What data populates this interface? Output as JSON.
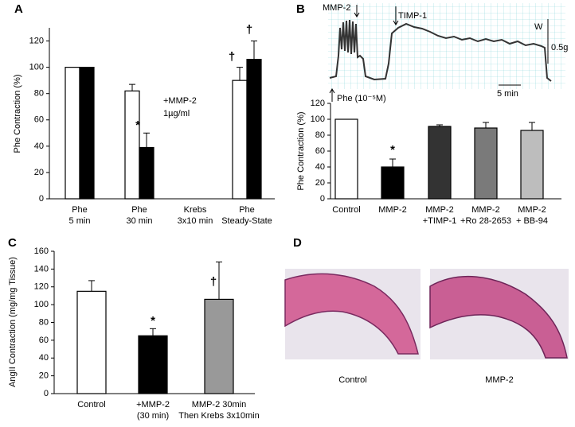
{
  "chart_data": [
    {
      "type": "bar",
      "panel": "A",
      "y_label": "Phe Contraction (%)",
      "categories": [
        [
          "Phe",
          "5 min"
        ],
        [
          "Phe",
          "30 min"
        ],
        [
          "Krebs",
          "3x10 min"
        ],
        [
          "Phe",
          "Steady-State"
        ]
      ],
      "series": [
        {
          "color": "#ffffff",
          "values": [
            100,
            82,
            null,
            90
          ],
          "errors": [
            null,
            5,
            null,
            10
          ]
        },
        {
          "color": "#000000",
          "values": [
            100,
            39,
            null,
            106
          ],
          "errors": [
            null,
            11,
            null,
            14
          ]
        }
      ],
      "ylim": [
        0,
        130
      ],
      "yticks": [
        0,
        20,
        40,
        60,
        80,
        100,
        120
      ],
      "annotations": [
        "+MMP-2",
        "1µg/ml",
        "*",
        "†",
        "†"
      ]
    },
    {
      "type": "bar",
      "panel": "B",
      "y_label": "Phe Contraction (%)",
      "categories": [
        [
          "Control"
        ],
        [
          "MMP-2"
        ],
        [
          "MMP-2",
          "+TIMP-1"
        ],
        [
          "MMP-2",
          "+Ro 28-2653"
        ],
        [
          "MMP-2",
          "+ BB-94"
        ]
      ],
      "series": [
        {
          "colors": [
            "#ffffff",
            "#000000",
            "#333333",
            "#7a7a7a",
            "#bdbdbd"
          ],
          "values": [
            100,
            40,
            91,
            89,
            86
          ],
          "errors": [
            null,
            10,
            2,
            7,
            10
          ]
        }
      ],
      "ylim": [
        0,
        120
      ],
      "yticks": [
        0,
        20,
        40,
        60,
        80,
        100,
        120
      ],
      "annotations": [
        "*"
      ],
      "trace_labels": [
        "MMP-2",
        "TIMP-1",
        "W",
        "0.5g",
        "5 min",
        "Phe (10⁻⁵M)"
      ]
    },
    {
      "type": "bar",
      "panel": "C",
      "y_label": "AngII Contraction (mg/mg Tissue)",
      "categories": [
        [
          "Control"
        ],
        [
          "+MMP-2",
          "(30 min)"
        ],
        [
          "MMP-2 30min",
          "Then Krebs 3x10min"
        ]
      ],
      "series": [
        {
          "colors": [
            "#ffffff",
            "#000000",
            "#999999"
          ],
          "values": [
            115,
            65,
            106
          ],
          "errors": [
            12,
            8,
            42
          ]
        }
      ],
      "ylim": [
        0,
        160
      ],
      "yticks": [
        0,
        20,
        40,
        60,
        80,
        100,
        120,
        140,
        160
      ],
      "annotations": [
        "*",
        "†"
      ]
    }
  ],
  "histology": {
    "panel": "D",
    "labels": [
      "Control",
      "MMP-2"
    ]
  }
}
